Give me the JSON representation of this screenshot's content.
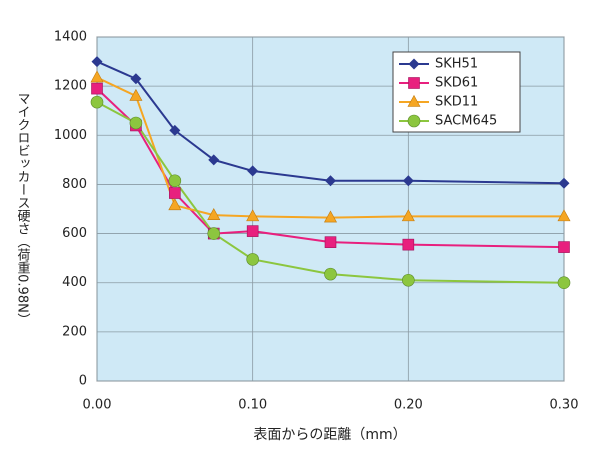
{
  "chart_data": {
    "type": "line",
    "ylabel": "マイクロビッカース硬さ（荷重0.98N）",
    "xlabel": "表面からの距離（mm）",
    "x": [
      0,
      0.025,
      0.05,
      0.075,
      0.1,
      0.15,
      0.2,
      0.3
    ],
    "series": [
      {
        "name": "SKH51",
        "color": "#2b3990",
        "marker": "diamond",
        "values": [
          1300,
          1230,
          1020,
          900,
          855,
          815,
          815,
          805
        ]
      },
      {
        "name": "SKD61",
        "color": "#e8207e",
        "marker": "square",
        "values": [
          1190,
          1040,
          765,
          600,
          610,
          565,
          555,
          545
        ]
      },
      {
        "name": "SKD11",
        "color": "#f5a623",
        "marker": "triangle",
        "values": [
          1235,
          1160,
          715,
          675,
          670,
          665,
          670,
          670
        ]
      },
      {
        "name": "SACM645",
        "color": "#8cc63f",
        "marker": "circle",
        "values": [
          1135,
          1050,
          815,
          600,
          495,
          435,
          410,
          400
        ]
      }
    ],
    "xlim": [
      0,
      0.3
    ],
    "xticks": [
      {
        "value": 0,
        "label": "0.00"
      },
      {
        "value": 0.1,
        "label": "0.10"
      },
      {
        "value": 0.2,
        "label": "0.20"
      },
      {
        "value": 0.3,
        "label": "0.30"
      }
    ],
    "ylim": [
      0,
      1400
    ],
    "yticks": [
      0,
      200,
      400,
      600,
      800,
      1000,
      1200,
      1400
    ],
    "grid": true,
    "legend": "upper right"
  }
}
